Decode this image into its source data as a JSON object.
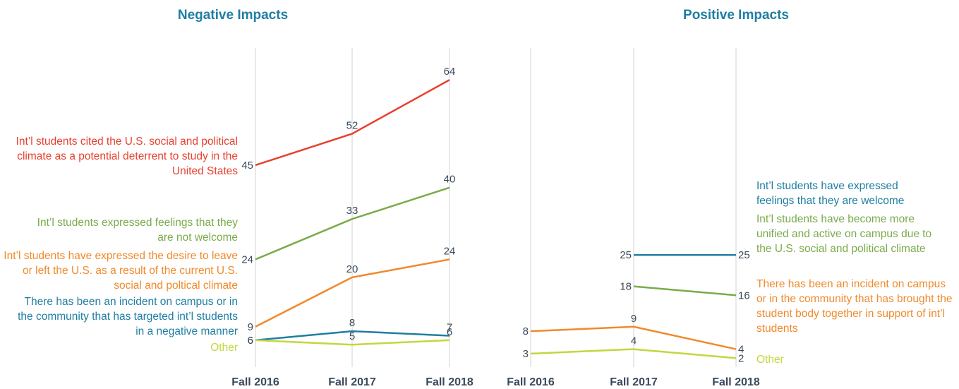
{
  "chart_data": [
    {
      "type": "line",
      "title": "Negative Impacts",
      "categories": [
        "Fall 2016",
        "Fall 2017",
        "Fall 2018"
      ],
      "ylim": [
        0,
        70
      ],
      "series": [
        {
          "name": "Int’l students cited the U.S. social and political climate as a potential deterrent to study in the United States",
          "color": "#e8412f",
          "values": [
            45,
            52,
            64
          ]
        },
        {
          "name": "Int’l students expressed feelings that they are not welcome",
          "color": "#7aab4a",
          "values": [
            24,
            33,
            40
          ]
        },
        {
          "name": "Int’l students have expressed the desire to leave or left the U.S. as a result of the current U.S. social and poltical climate",
          "color": "#f08a2b",
          "values": [
            9,
            20,
            24
          ]
        },
        {
          "name": "There has been an incident on campus or in the community that has targeted int’l students in a negative manner",
          "color": "#1f7ea1",
          "values": [
            6,
            8,
            7
          ]
        },
        {
          "name": "Other",
          "color": "#c5d63d",
          "values": [
            6,
            5,
            6
          ]
        }
      ]
    },
    {
      "type": "line",
      "title": "Positive Impacts",
      "categories": [
        "Fall 2016",
        "Fall 2017",
        "Fall 2018"
      ],
      "ylim": [
        0,
        70
      ],
      "series": [
        {
          "name": "Int’l students have expressed feelings that they are welcome",
          "color": "#1f7ea1",
          "values": [
            null,
            25,
            25
          ]
        },
        {
          "name": "Int’l students have become more unified and active on campus due to the U.S. social and political climate",
          "color": "#7aab4a",
          "values": [
            null,
            18,
            16
          ]
        },
        {
          "name": "There has been an incident on campus or in the community that has brought the student body together in support of int’l students",
          "color": "#f08a2b",
          "values": [
            8,
            9,
            4
          ]
        },
        {
          "name": "Other",
          "color": "#c5d63d",
          "values": [
            3,
            4,
            2
          ]
        }
      ]
    }
  ]
}
